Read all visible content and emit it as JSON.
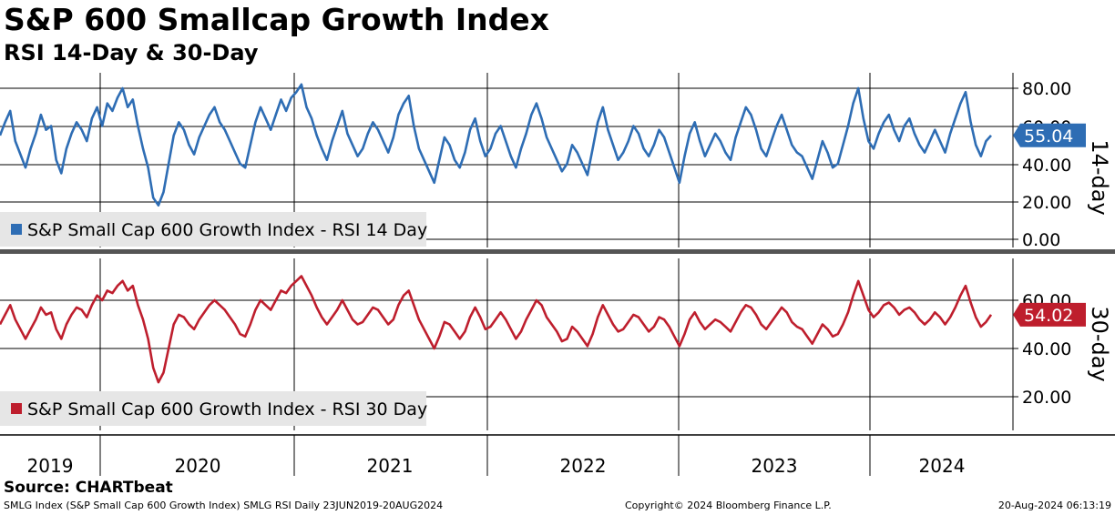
{
  "title": "S&P 600 Smallcap Growth Index",
  "subtitle": "RSI 14-Day & 30-Day",
  "source": "Source: CHARTbeat",
  "footer": {
    "left": "SMLG Index (S&P Small Cap 600 Growth Index) SMLG RSI  Daily 23JUN2019-20AUG2024",
    "center": "Copyright© 2024 Bloomberg Finance L.P.",
    "right": "20-Aug-2024 06:13:19"
  },
  "chart_data": [
    {
      "type": "line",
      "panel_label": "14-day",
      "x_start": "2019-06-23",
      "x_end": "2024-08-20",
      "ylim": [
        0,
        85
      ],
      "yticks": [
        "0.00",
        "20.00",
        "40.00",
        "60.00",
        "80.00"
      ],
      "grid": true,
      "legend_position": "bottom-left",
      "current_value_label": "55.04",
      "series": [
        {
          "name": "S&P Small Cap 600 Growth Index - RSI 14 Day",
          "color": "#2e6db4",
          "values": [
            55,
            62,
            68,
            52,
            45,
            38,
            48,
            56,
            66,
            58,
            60,
            42,
            35,
            48,
            56,
            62,
            58,
            52,
            64,
            70,
            60,
            72,
            68,
            75,
            80,
            70,
            74,
            60,
            48,
            38,
            22,
            18,
            25,
            40,
            55,
            62,
            58,
            50,
            45,
            54,
            60,
            66,
            70,
            62,
            58,
            52,
            46,
            40,
            38,
            50,
            62,
            70,
            64,
            58,
            66,
            74,
            68,
            75,
            78,
            82,
            70,
            64,
            55,
            48,
            42,
            52,
            60,
            68,
            56,
            50,
            44,
            48,
            56,
            62,
            58,
            52,
            46,
            54,
            66,
            72,
            76,
            60,
            48,
            42,
            36,
            30,
            42,
            54,
            50,
            42,
            38,
            46,
            58,
            64,
            52,
            44,
            48,
            56,
            60,
            52,
            44,
            38,
            48,
            56,
            66,
            72,
            64,
            54,
            48,
            42,
            36,
            40,
            50,
            46,
            40,
            34,
            48,
            62,
            70,
            58,
            50,
            42,
            46,
            52,
            60,
            56,
            48,
            44,
            50,
            58,
            54,
            46,
            38,
            30,
            44,
            56,
            62,
            52,
            44,
            50,
            56,
            52,
            46,
            42,
            54,
            62,
            70,
            66,
            58,
            48,
            44,
            52,
            60,
            66,
            58,
            50,
            46,
            44,
            38,
            32,
            42,
            52,
            46,
            38,
            40,
            50,
            60,
            72,
            80,
            64,
            52,
            48,
            56,
            62,
            66,
            58,
            52,
            60,
            64,
            56,
            50,
            46,
            52,
            58,
            52,
            46,
            56,
            64,
            72,
            78,
            62,
            50,
            44,
            52,
            55
          ]
        }
      ]
    },
    {
      "type": "line",
      "panel_label": "30-day",
      "x_start": "2019-06-23",
      "x_end": "2024-08-20",
      "ylim": [
        5,
        75
      ],
      "yticks": [
        "20.00",
        "40.00",
        "60.00"
      ],
      "grid": true,
      "legend_position": "bottom-left",
      "current_value_label": "54.02",
      "series": [
        {
          "name": "S&P Small Cap 600 Growth Index - RSI 30 Day",
          "color": "#be1e2d",
          "values": [
            50,
            54,
            58,
            52,
            48,
            44,
            48,
            52,
            57,
            54,
            55,
            48,
            44,
            50,
            54,
            57,
            56,
            53,
            58,
            62,
            60,
            64,
            63,
            66,
            68,
            64,
            66,
            58,
            52,
            44,
            32,
            26,
            30,
            40,
            50,
            54,
            53,
            50,
            48,
            52,
            55,
            58,
            60,
            58,
            56,
            53,
            50,
            46,
            45,
            50,
            56,
            60,
            58,
            56,
            60,
            64,
            63,
            66,
            68,
            70,
            66,
            62,
            57,
            53,
            50,
            53,
            56,
            60,
            56,
            52,
            50,
            51,
            54,
            57,
            56,
            53,
            50,
            52,
            58,
            62,
            64,
            58,
            52,
            48,
            44,
            40,
            45,
            51,
            50,
            47,
            44,
            47,
            53,
            57,
            53,
            48,
            49,
            52,
            55,
            52,
            48,
            44,
            47,
            52,
            56,
            60,
            58,
            53,
            50,
            47,
            43,
            44,
            49,
            47,
            44,
            41,
            46,
            53,
            58,
            54,
            50,
            47,
            48,
            51,
            54,
            53,
            50,
            47,
            49,
            53,
            52,
            49,
            45,
            41,
            46,
            52,
            55,
            51,
            48,
            50,
            52,
            51,
            49,
            47,
            51,
            55,
            58,
            57,
            54,
            50,
            48,
            51,
            54,
            57,
            55,
            51,
            49,
            48,
            45,
            42,
            46,
            50,
            48,
            45,
            46,
            50,
            55,
            62,
            68,
            62,
            56,
            53,
            55,
            58,
            59,
            57,
            54,
            56,
            57,
            55,
            52,
            50,
            52,
            55,
            53,
            50,
            53,
            57,
            62,
            66,
            59,
            53,
            49,
            51,
            54
          ]
        }
      ]
    },
    {
      "type": "axis",
      "x_tick_labels": [
        "2019",
        "2020",
        "2021",
        "2022",
        "2023",
        "2024"
      ]
    }
  ]
}
